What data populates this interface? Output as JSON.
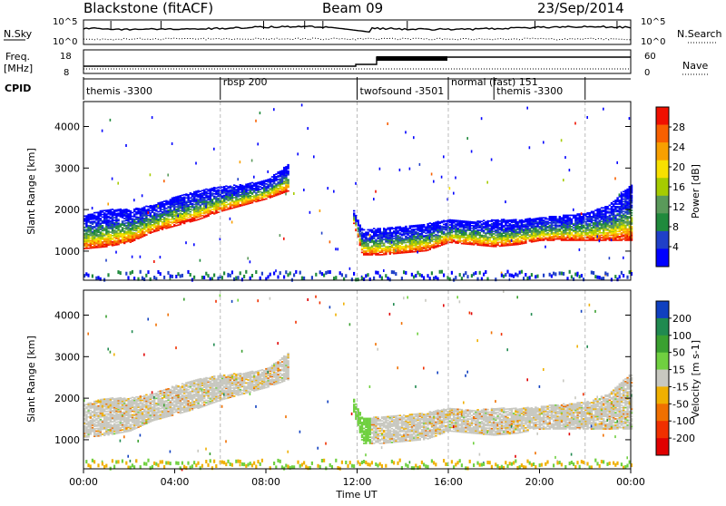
{
  "header": {
    "title": "Blackstone (fitACF)",
    "beam": "Beam 09",
    "date": "23/Sep/2014"
  },
  "nsky_panel": {
    "left_label": "N.Sky",
    "right_label": "N.Search",
    "left_ticks": [
      "10^5",
      "10^0"
    ],
    "right_ticks": [
      "10^5",
      "10^0"
    ]
  },
  "freq_panel": {
    "left_label_1": "Freq.",
    "left_label_2": "[MHz]",
    "right_label": "Nave",
    "left_ticks": [
      "18",
      "8"
    ],
    "right_ticks": [
      "60",
      "0"
    ]
  },
  "cpid_panel": {
    "label": "CPID",
    "segments": [
      {
        "name": "themis -3300",
        "start_hour": 0
      },
      {
        "name": "rbsp 200",
        "start_hour": 6
      },
      {
        "name": "twofsound -3501",
        "start_hour": 12
      },
      {
        "name": "normal (fast) 151",
        "start_hour": 16
      },
      {
        "name": "themis -3300",
        "start_hour": 18
      }
    ]
  },
  "power_panel": {
    "ylabel": "Slant Range [km]",
    "colorbar_label": "Power [dB]",
    "colorbar_ticks": [
      "28",
      "24",
      "20",
      "16",
      "12",
      "8",
      "4"
    ],
    "colors": [
      "#0000ff",
      "#2040c8",
      "#208a3c",
      "#5a9a5a",
      "#a6cc00",
      "#f8e000",
      "#f8a000",
      "#f86000",
      "#f01000"
    ]
  },
  "velocity_panel": {
    "ylabel": "Slant Range [km]",
    "colorbar_label": "Velocity [m s-1]",
    "colorbar_ticks": [
      "200",
      "100",
      "50",
      "15",
      "-15",
      "-50",
      "-100",
      "-200"
    ],
    "colors": [
      "#1040c0",
      "#208a50",
      "#3aa030",
      "#70d040",
      "#c8c8c0",
      "#f0b000",
      "#f07000",
      "#f03000",
      "#e00000"
    ]
  },
  "x_axis": {
    "label": "Time UT",
    "ticks": [
      "00:00",
      "04:00",
      "08:00",
      "12:00",
      "16:00",
      "20:00",
      "00:00"
    ]
  },
  "chart_data": {
    "type": "heatmap",
    "x_range_hours": [
      0,
      24
    ],
    "y_range_km": [
      300,
      4600
    ],
    "y_ticks": [
      "1000",
      "2000",
      "3000",
      "4000"
    ],
    "x_ticks": [
      "00:00",
      "04:00",
      "08:00",
      "12:00",
      "16:00",
      "20:00",
      "00:00"
    ],
    "main_echo_band_km": {
      "hours": [
        0,
        1,
        2,
        3,
        4,
        5,
        6,
        7,
        8,
        9,
        10,
        11.8,
        12.2,
        13,
        14,
        15,
        16,
        17,
        18,
        19,
        20,
        21,
        22,
        23,
        24
      ],
      "lower": [
        1050,
        1100,
        1200,
        1450,
        1600,
        1750,
        1950,
        2100,
        2250,
        2450,
        null,
        1700,
        900,
        900,
        950,
        1000,
        1200,
        1150,
        1100,
        1150,
        1250,
        1250,
        1250,
        1250,
        1250
      ],
      "upper": [
        1850,
        2000,
        2000,
        2100,
        2300,
        2450,
        2550,
        2600,
        2700,
        3100,
        null,
        2000,
        1500,
        1550,
        1600,
        1650,
        1750,
        1700,
        1750,
        1750,
        1800,
        1850,
        1900,
        2100,
        2600
      ]
    }
  }
}
